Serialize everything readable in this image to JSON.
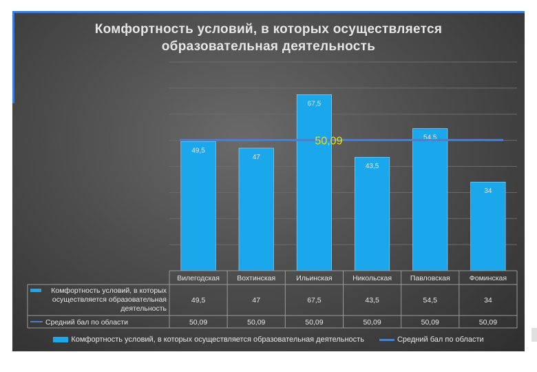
{
  "slide": {
    "title": "Комфортность условий, в которых осуществляется образовательная деятельность",
    "colors": {
      "background": "#4a4a4a",
      "bar": "#1aa7ec",
      "line": "#4f7fc7",
      "average_label": "#f0e000"
    }
  },
  "chart_data": {
    "type": "bar",
    "title": "Комфортность условий, в которых осуществляется образовательная деятельность",
    "categories": [
      "Вилегодская",
      "Вохтинская",
      "Ильинская",
      "Никольская",
      "Павловская",
      "Фоминская"
    ],
    "series": [
      {
        "name": "Комфортность условий, в которых осуществляется образовательная деятельность",
        "type": "bar",
        "values": [
          49.5,
          47,
          67.5,
          43.5,
          54.5,
          34
        ],
        "labels": [
          "49,5",
          "47",
          "67,5",
          "43,5",
          "54,5",
          "34"
        ]
      },
      {
        "name": "Средний бал по области",
        "type": "line",
        "values": [
          50.09,
          50.09,
          50.09,
          50.09,
          50.09,
          50.09
        ],
        "labels": [
          "50,09",
          "50,09",
          "50,09",
          "50,09",
          "50,09",
          "50,09"
        ]
      }
    ],
    "average_annotation": "50,09",
    "ylim": [
      0,
      80
    ],
    "grid": true,
    "data_table": {
      "row_labels": [
        [
          "Комфортность условий, в которых",
          "осуществляется образовательная",
          "деятельность"
        ],
        [
          "Средний бал  по области"
        ]
      ]
    },
    "legend": {
      "placement": "bottom",
      "entries": [
        "Комфортность условий, в которых осуществляется образовательная деятельность",
        "Средний бал  по области"
      ]
    }
  }
}
